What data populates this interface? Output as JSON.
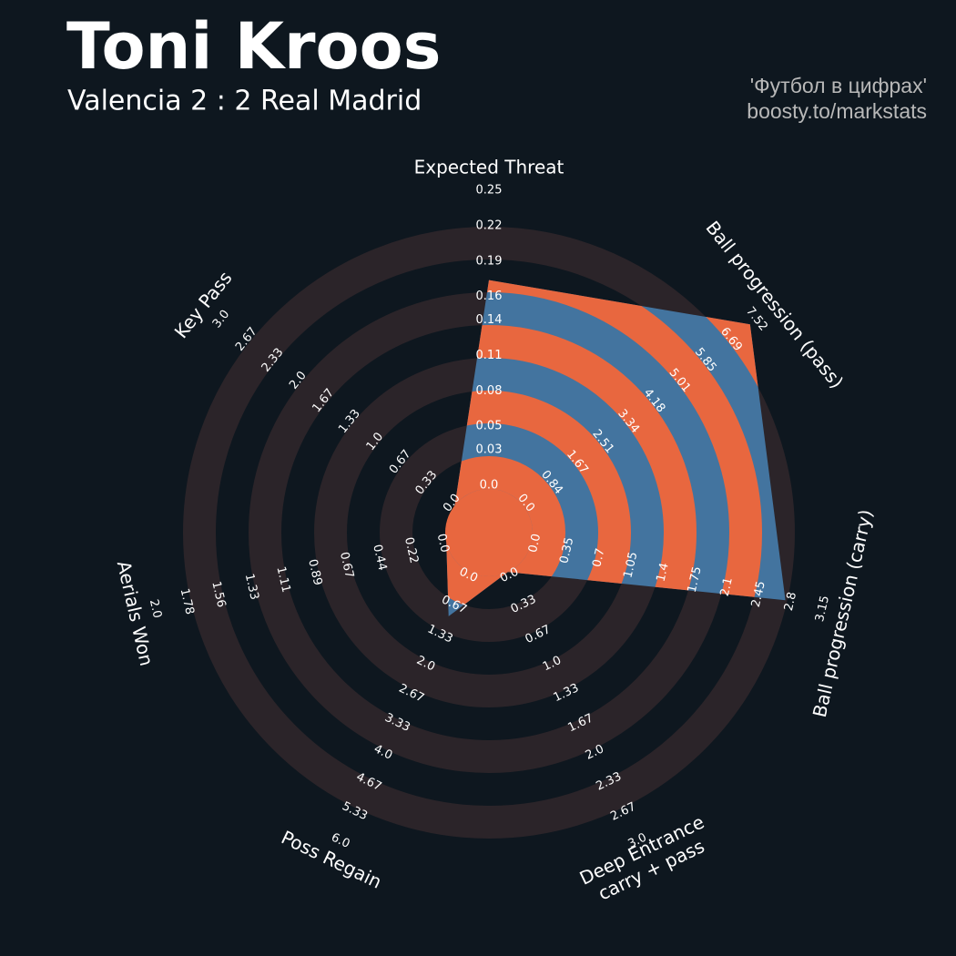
{
  "chart_data": {
    "type": "radar",
    "title": "Toni Kroos",
    "subtitle": "Valencia 2 : 2 Real Madrid",
    "credits": [
      "'Футбол в цифрах'",
      "boosty.to/markstats"
    ],
    "categories": [
      "Expected Threat",
      "Ball progression (pass)",
      "Ball progression (carry)",
      "Deep Entrance\ncarry + pass",
      "Poss Regain",
      "Aerials Won",
      "Key Pass"
    ],
    "values": [
      0.177,
      7.4,
      2.78,
      0,
      1.0,
      0,
      0
    ],
    "ranges": [
      [
        0,
        0.25
      ],
      [
        0,
        7.52
      ],
      [
        0,
        3.15
      ],
      [
        0,
        3.0
      ],
      [
        0,
        6.0
      ],
      [
        0,
        2.0
      ],
      [
        0,
        3.0
      ]
    ],
    "ticks": [
      [
        {
          "value": 0,
          "label": "0.0"
        },
        0.03,
        0.05,
        0.08,
        0.11,
        0.14,
        0.16,
        0.19,
        0.22,
        0.25
      ],
      [
        {
          "value": 0,
          "label": "0.0"
        },
        0.84,
        1.67,
        2.51,
        3.34,
        4.18,
        5.01,
        5.85,
        6.69,
        7.52
      ],
      [
        {
          "value": 0,
          "label": "0.0"
        },
        0.35,
        0.7,
        1.05,
        1.4,
        1.75,
        2.1,
        2.45,
        2.8,
        3.15
      ],
      [
        {
          "value": 0,
          "label": "0.0"
        },
        0.33,
        0.67,
        {
          "value": 1,
          "label": "1.0"
        },
        1.33,
        1.67,
        {
          "value": 2,
          "label": "2.0"
        },
        2.33,
        2.67,
        {
          "value": 3,
          "label": "3.0"
        }
      ],
      [
        {
          "value": 0,
          "label": "0.0"
        },
        0.67,
        1.33,
        {
          "value": 2,
          "label": "2.0"
        },
        2.67,
        3.33,
        {
          "value": 4,
          "label": "4.0"
        },
        4.67,
        5.33,
        {
          "value": 6,
          "label": "6.0"
        }
      ],
      [
        {
          "value": 0,
          "label": "0.0"
        },
        0.22,
        0.44,
        0.67,
        0.89,
        1.11,
        1.33,
        1.56,
        1.78,
        {
          "value": 2,
          "label": "2.0"
        }
      ],
      [
        {
          "value": 0,
          "label": "0.0"
        },
        0.33,
        0.67,
        {
          "value": 1,
          "label": "1.0"
        },
        1.33,
        1.67,
        {
          "value": 2,
          "label": "2.0"
        },
        2.33,
        2.67,
        {
          "value": 3,
          "label": "3.0"
        }
      ]
    ],
    "color": "#43749f",
    "ring_color": "#e8673f",
    "band_color": "#2b2429",
    "background": "#0e171f"
  }
}
